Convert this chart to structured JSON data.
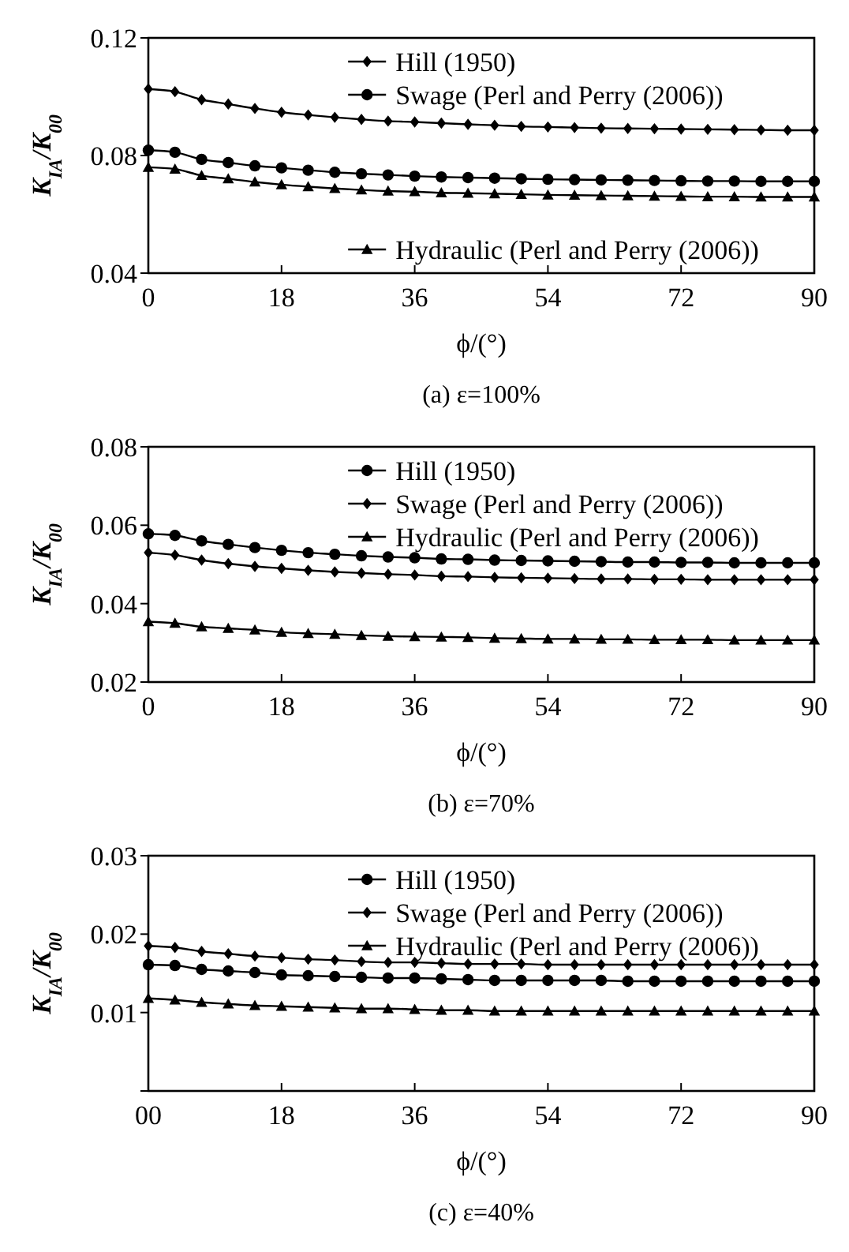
{
  "chart_data": [
    {
      "type": "line",
      "ylabel": "K$_{IA}$/K$_{00}$",
      "xlabel": "ϕ/(°)",
      "annotations": [
        "(a) ε=100%"
      ],
      "xlim": [
        0,
        90
      ],
      "xticks": [
        0,
        18,
        36,
        54,
        72,
        90
      ],
      "ylim": [
        0.04,
        0.12
      ],
      "yticks": [
        0.04,
        0.08,
        0.12
      ],
      "legend": "right",
      "x": [
        0,
        3.6,
        7.2,
        10.8,
        14.4,
        18,
        21.6,
        25.2,
        28.8,
        32.4,
        36,
        39.6,
        43.2,
        46.8,
        50.4,
        54,
        57.6,
        61.2,
        64.8,
        68.4,
        72,
        75.6,
        79.2,
        82.8,
        86.4,
        90
      ],
      "series": [
        {
          "name": "Hill (1950)",
          "color": "#000000",
          "marker": "diamond",
          "values": [
            0.1026,
            0.1017,
            0.099,
            0.0975,
            0.096,
            0.0947,
            0.0938,
            0.093,
            0.0923,
            0.0917,
            0.0914,
            0.091,
            0.0906,
            0.0903,
            0.0899,
            0.0897,
            0.0895,
            0.0893,
            0.0892,
            0.0891,
            0.089,
            0.0889,
            0.0888,
            0.0887,
            0.0886,
            0.0886
          ]
        },
        {
          "name": "Swage (Perl and Perry (2006))",
          "color": "#000000",
          "marker": "circle",
          "values": [
            0.0818,
            0.0811,
            0.0787,
            0.0776,
            0.0765,
            0.0758,
            0.075,
            0.0743,
            0.0738,
            0.0734,
            0.073,
            0.0727,
            0.0725,
            0.0723,
            0.0721,
            0.0719,
            0.0718,
            0.0717,
            0.0716,
            0.0715,
            0.0714,
            0.0713,
            0.0713,
            0.0712,
            0.0712,
            0.0712
          ]
        },
        {
          "name": "Hydraulic (Perl and Perry (2006))",
          "color": "#000000",
          "marker": "triangle",
          "values": [
            0.076,
            0.0754,
            0.0732,
            0.0721,
            0.071,
            0.0701,
            0.0694,
            0.0688,
            0.0683,
            0.0679,
            0.0677,
            0.0673,
            0.0672,
            0.067,
            0.0668,
            0.0666,
            0.0665,
            0.0664,
            0.0663,
            0.0662,
            0.0661,
            0.066,
            0.066,
            0.0659,
            0.0659,
            0.0659
          ]
        }
      ]
    },
    {
      "type": "line",
      "ylabel": "K$_{IA}$/K$_{00}$",
      "xlabel": "ϕ/(°)",
      "annotations": [
        "(b) ε=70%"
      ],
      "xlim": [
        0,
        90
      ],
      "xticks": [
        0,
        18,
        36,
        54,
        72,
        90
      ],
      "ylim": [
        0.02,
        0.08
      ],
      "yticks": [
        0.02,
        0.04,
        0.06,
        0.08
      ],
      "legend": "top right",
      "x": [
        0,
        3.6,
        7.2,
        10.8,
        14.4,
        18,
        21.6,
        25.2,
        28.8,
        32.4,
        36,
        39.6,
        43.2,
        46.8,
        50.4,
        54,
        57.6,
        61.2,
        64.8,
        68.4,
        72,
        75.6,
        79.2,
        82.8,
        86.4,
        90
      ],
      "series": [
        {
          "name": "Hill (1950)",
          "color": "#000000",
          "marker": "circle",
          "values": [
            0.0578,
            0.0574,
            0.056,
            0.0551,
            0.0543,
            0.0536,
            0.053,
            0.0526,
            0.0522,
            0.0519,
            0.0517,
            0.0514,
            0.0513,
            0.0511,
            0.051,
            0.0509,
            0.0508,
            0.0507,
            0.0506,
            0.0506,
            0.0505,
            0.0505,
            0.0504,
            0.0504,
            0.0504,
            0.0504
          ]
        },
        {
          "name": "Swage (Perl and Perry (2006))",
          "color": "#000000",
          "marker": "diamond",
          "values": [
            0.053,
            0.0524,
            0.0511,
            0.0502,
            0.0495,
            0.049,
            0.0485,
            0.0481,
            0.0478,
            0.0475,
            0.0473,
            0.047,
            0.0469,
            0.0467,
            0.0466,
            0.0465,
            0.0464,
            0.0463,
            0.0463,
            0.0462,
            0.0462,
            0.0461,
            0.0461,
            0.0461,
            0.0461,
            0.0461
          ]
        },
        {
          "name": "Hydraulic (Perl and Perry (2006))",
          "color": "#000000",
          "marker": "triangle",
          "values": [
            0.0354,
            0.035,
            0.0341,
            0.0337,
            0.0333,
            0.0327,
            0.0324,
            0.0322,
            0.0319,
            0.0317,
            0.0316,
            0.0315,
            0.0314,
            0.0312,
            0.0311,
            0.031,
            0.031,
            0.0309,
            0.0309,
            0.0308,
            0.0308,
            0.0308,
            0.0307,
            0.0307,
            0.0307,
            0.0307
          ]
        }
      ]
    },
    {
      "type": "line",
      "ylabel": "K$_{IA}$/K$_{00}$",
      "xlabel": "ϕ/(°)",
      "annotations": [
        "(c) ε=40%"
      ],
      "xlim": [
        0,
        90
      ],
      "xticks": [
        {
          "value": 0,
          "label": "00"
        },
        18,
        36,
        54,
        72,
        90
      ],
      "ylim": [
        0,
        0.03
      ],
      "yticks": [
        {
          "value": 0,
          "label": null
        },
        0.01,
        0.02,
        0.03
      ],
      "legend": "top right",
      "x": [
        0,
        3.6,
        7.2,
        10.8,
        14.4,
        18,
        21.6,
        25.2,
        28.8,
        32.4,
        36,
        39.6,
        43.2,
        46.8,
        50.4,
        54,
        57.6,
        61.2,
        64.8,
        68.4,
        72,
        75.6,
        79.2,
        82.8,
        86.4,
        90
      ],
      "series": [
        {
          "name": "Hill (1950)",
          "color": "#000000",
          "marker": "circle",
          "values": [
            0.0161,
            0.016,
            0.0155,
            0.0153,
            0.0151,
            0.0148,
            0.0147,
            0.0146,
            0.0145,
            0.0144,
            0.0144,
            0.0143,
            0.0142,
            0.0141,
            0.0141,
            0.0141,
            0.0141,
            0.0141,
            0.014,
            0.014,
            0.014,
            0.014,
            0.014,
            0.014,
            0.014,
            0.014
          ]
        },
        {
          "name": "Swage (Perl and Perry (2006))",
          "color": "#000000",
          "marker": "diamond",
          "values": [
            0.0185,
            0.0183,
            0.0178,
            0.0175,
            0.0172,
            0.017,
            0.0168,
            0.0167,
            0.0165,
            0.0164,
            0.0164,
            0.0163,
            0.0162,
            0.0162,
            0.0162,
            0.0161,
            0.0161,
            0.0161,
            0.0161,
            0.0161,
            0.0161,
            0.0161,
            0.0161,
            0.0161,
            0.0161,
            0.0161
          ]
        },
        {
          "name": "Hydraulic (Perl and Perry (2006))",
          "color": "#000000",
          "marker": "triangle",
          "values": [
            0.0118,
            0.0116,
            0.0113,
            0.0111,
            0.0109,
            0.0108,
            0.0107,
            0.0106,
            0.0105,
            0.0105,
            0.0104,
            0.0103,
            0.0103,
            0.0102,
            0.0102,
            0.0102,
            0.0102,
            0.0102,
            0.0102,
            0.0102,
            0.0102,
            0.0102,
            0.0102,
            0.0102,
            0.0102,
            0.0102
          ]
        }
      ]
    }
  ]
}
